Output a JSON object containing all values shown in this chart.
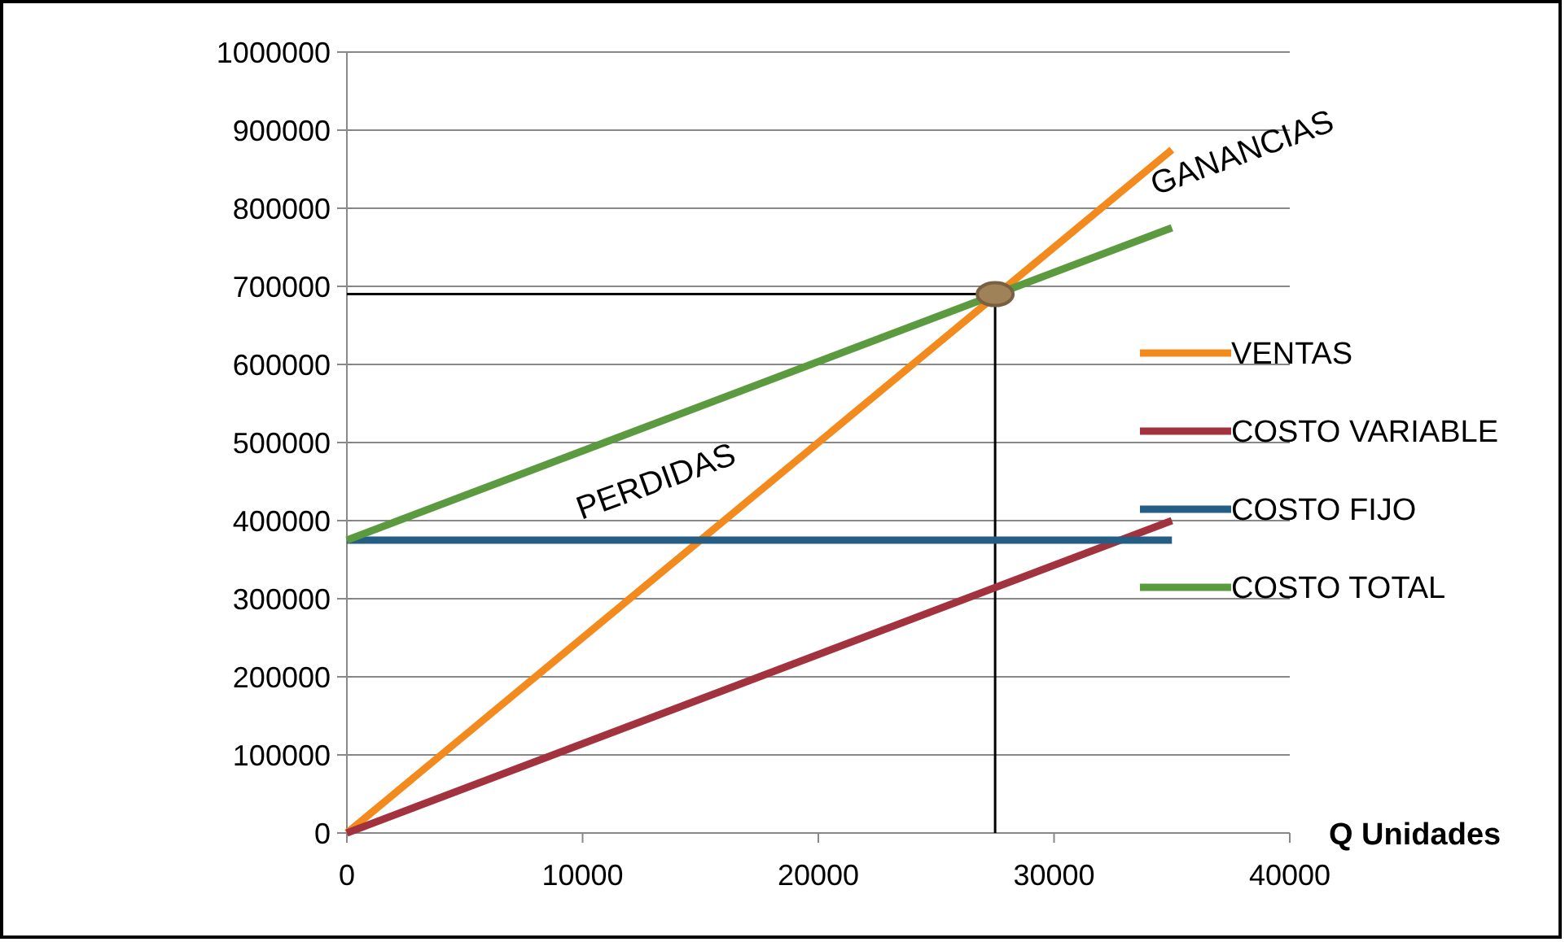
{
  "chart_data": {
    "type": "line",
    "xlabel": "Q Unidades",
    "x": [
      0,
      35000
    ],
    "series": [
      {
        "name": "VENTAS",
        "color": "#f28a1e",
        "values": [
          0,
          875000
        ]
      },
      {
        "name": "COSTO VARIABLE",
        "color": "#a2323e",
        "values": [
          0,
          400000
        ]
      },
      {
        "name": "COSTO FIJO",
        "color": "#245e85",
        "values": [
          375000,
          375000
        ]
      },
      {
        "name": "COSTO TOTAL",
        "color": "#5b9a3f",
        "values": [
          375000,
          775000
        ]
      },
      {
        "type": "scatter",
        "color": "#a08258",
        "marker": "circle",
        "x": [
          27500
        ],
        "values": [
          690000
        ]
      }
    ],
    "xlim": [
      0,
      40000
    ],
    "xticks": [
      0,
      10000,
      20000,
      30000,
      40000
    ],
    "ylim": [
      0,
      1000000
    ],
    "yticks": [
      0,
      100000,
      200000,
      300000,
      400000,
      500000,
      600000,
      700000,
      800000,
      900000,
      1000000
    ],
    "ref_lines": [
      {
        "axis": "x",
        "value": 27500,
        "color": "#000000"
      },
      {
        "axis": "y",
        "value": 690000,
        "color": "#000000"
      }
    ],
    "annotations": [
      "GANANCIAS",
      "PERDIDAS"
    ],
    "grid": "y",
    "legend": "right",
    "marker": "none",
    "line_style": "solid"
  }
}
